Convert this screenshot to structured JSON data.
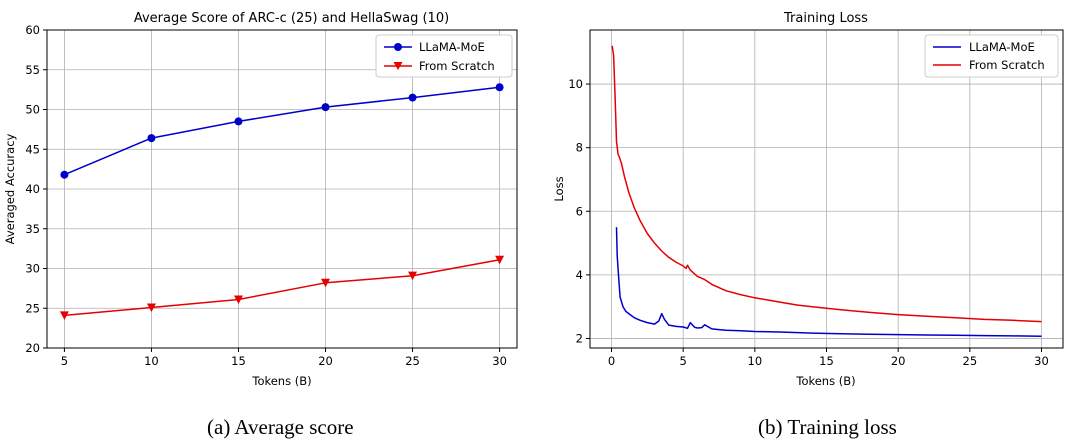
{
  "chart_data": [
    {
      "type": "line",
      "title": "Average Score of ARC-c (25) and HellaSwag (10)",
      "xlabel": "Tokens (B)",
      "ylabel": "Averaged Accuracy",
      "xlim": [
        4,
        31
      ],
      "ylim": [
        20,
        60
      ],
      "x_ticks": [
        "5",
        "10",
        "15",
        "20",
        "25",
        "30"
      ],
      "y_ticks": [
        "20",
        "25",
        "30",
        "35",
        "40",
        "45",
        "50",
        "55",
        "60"
      ],
      "grid": true,
      "legend_position": "top-right",
      "caption": "(a) Average score",
      "series": [
        {
          "name": "LLaMA-MoE",
          "color": "#0000cc",
          "marker": "circle",
          "x": [
            5,
            10,
            15,
            20,
            25,
            30
          ],
          "y": [
            41.8,
            46.4,
            48.5,
            50.3,
            51.5,
            52.8
          ]
        },
        {
          "name": "From Scratch",
          "color": "#e60000",
          "marker": "triangle-down",
          "x": [
            5,
            10,
            15,
            20,
            25,
            30
          ],
          "y": [
            24.1,
            25.1,
            26.1,
            28.2,
            29.1,
            31.1
          ]
        }
      ]
    },
    {
      "type": "line",
      "title": "Training Loss",
      "xlabel": "Tokens (B)",
      "ylabel": "Loss",
      "xlim": [
        -1.5,
        31.5
      ],
      "ylim": [
        1.7,
        11.7
      ],
      "x_ticks": [
        "0",
        "5",
        "10",
        "15",
        "20",
        "25",
        "30"
      ],
      "y_ticks": [
        "2",
        "4",
        "6",
        "8",
        "10"
      ],
      "grid": true,
      "legend_position": "top-right",
      "caption": "(b) Training loss",
      "series": [
        {
          "name": "LLaMA-MoE",
          "color": "#0000cc",
          "marker": "none",
          "x": [
            0.35,
            0.4,
            0.5,
            0.6,
            0.8,
            1.0,
            1.3,
            1.6,
            2.0,
            2.5,
            3.0,
            3.3,
            3.5,
            3.7,
            4.0,
            4.5,
            5.0,
            5.3,
            5.5,
            5.8,
            6.0,
            6.3,
            6.5,
            7.0,
            7.5,
            8,
            9,
            10,
            11,
            12,
            14,
            16,
            18,
            20,
            22,
            24,
            26,
            28,
            30
          ],
          "y": [
            5.5,
            4.6,
            3.9,
            3.3,
            3.0,
            2.85,
            2.75,
            2.65,
            2.57,
            2.5,
            2.45,
            2.55,
            2.78,
            2.6,
            2.42,
            2.38,
            2.36,
            2.32,
            2.5,
            2.35,
            2.33,
            2.34,
            2.43,
            2.3,
            2.28,
            2.26,
            2.24,
            2.22,
            2.21,
            2.2,
            2.17,
            2.15,
            2.13,
            2.12,
            2.11,
            2.1,
            2.09,
            2.08,
            2.07
          ]
        },
        {
          "name": "From Scratch",
          "color": "#e60000",
          "marker": "none",
          "x": [
            0.05,
            0.15,
            0.25,
            0.35,
            0.45,
            0.55,
            0.7,
            0.9,
            1.2,
            1.6,
            2.0,
            2.5,
            3.0,
            3.5,
            4.0,
            4.5,
            5.0,
            5.2,
            5.3,
            5.5,
            6.0,
            6.5,
            7.0,
            8,
            9,
            10,
            11,
            12,
            13,
            14,
            15,
            16,
            18,
            20,
            22,
            24,
            26,
            28,
            30
          ],
          "y": [
            11.2,
            10.9,
            9.6,
            8.2,
            7.8,
            7.7,
            7.5,
            7.1,
            6.6,
            6.1,
            5.7,
            5.3,
            5.0,
            4.75,
            4.55,
            4.4,
            4.28,
            4.2,
            4.3,
            4.15,
            3.95,
            3.85,
            3.7,
            3.5,
            3.38,
            3.28,
            3.2,
            3.12,
            3.05,
            3.0,
            2.95,
            2.9,
            2.82,
            2.75,
            2.7,
            2.65,
            2.6,
            2.57,
            2.53
          ]
        }
      ]
    }
  ]
}
